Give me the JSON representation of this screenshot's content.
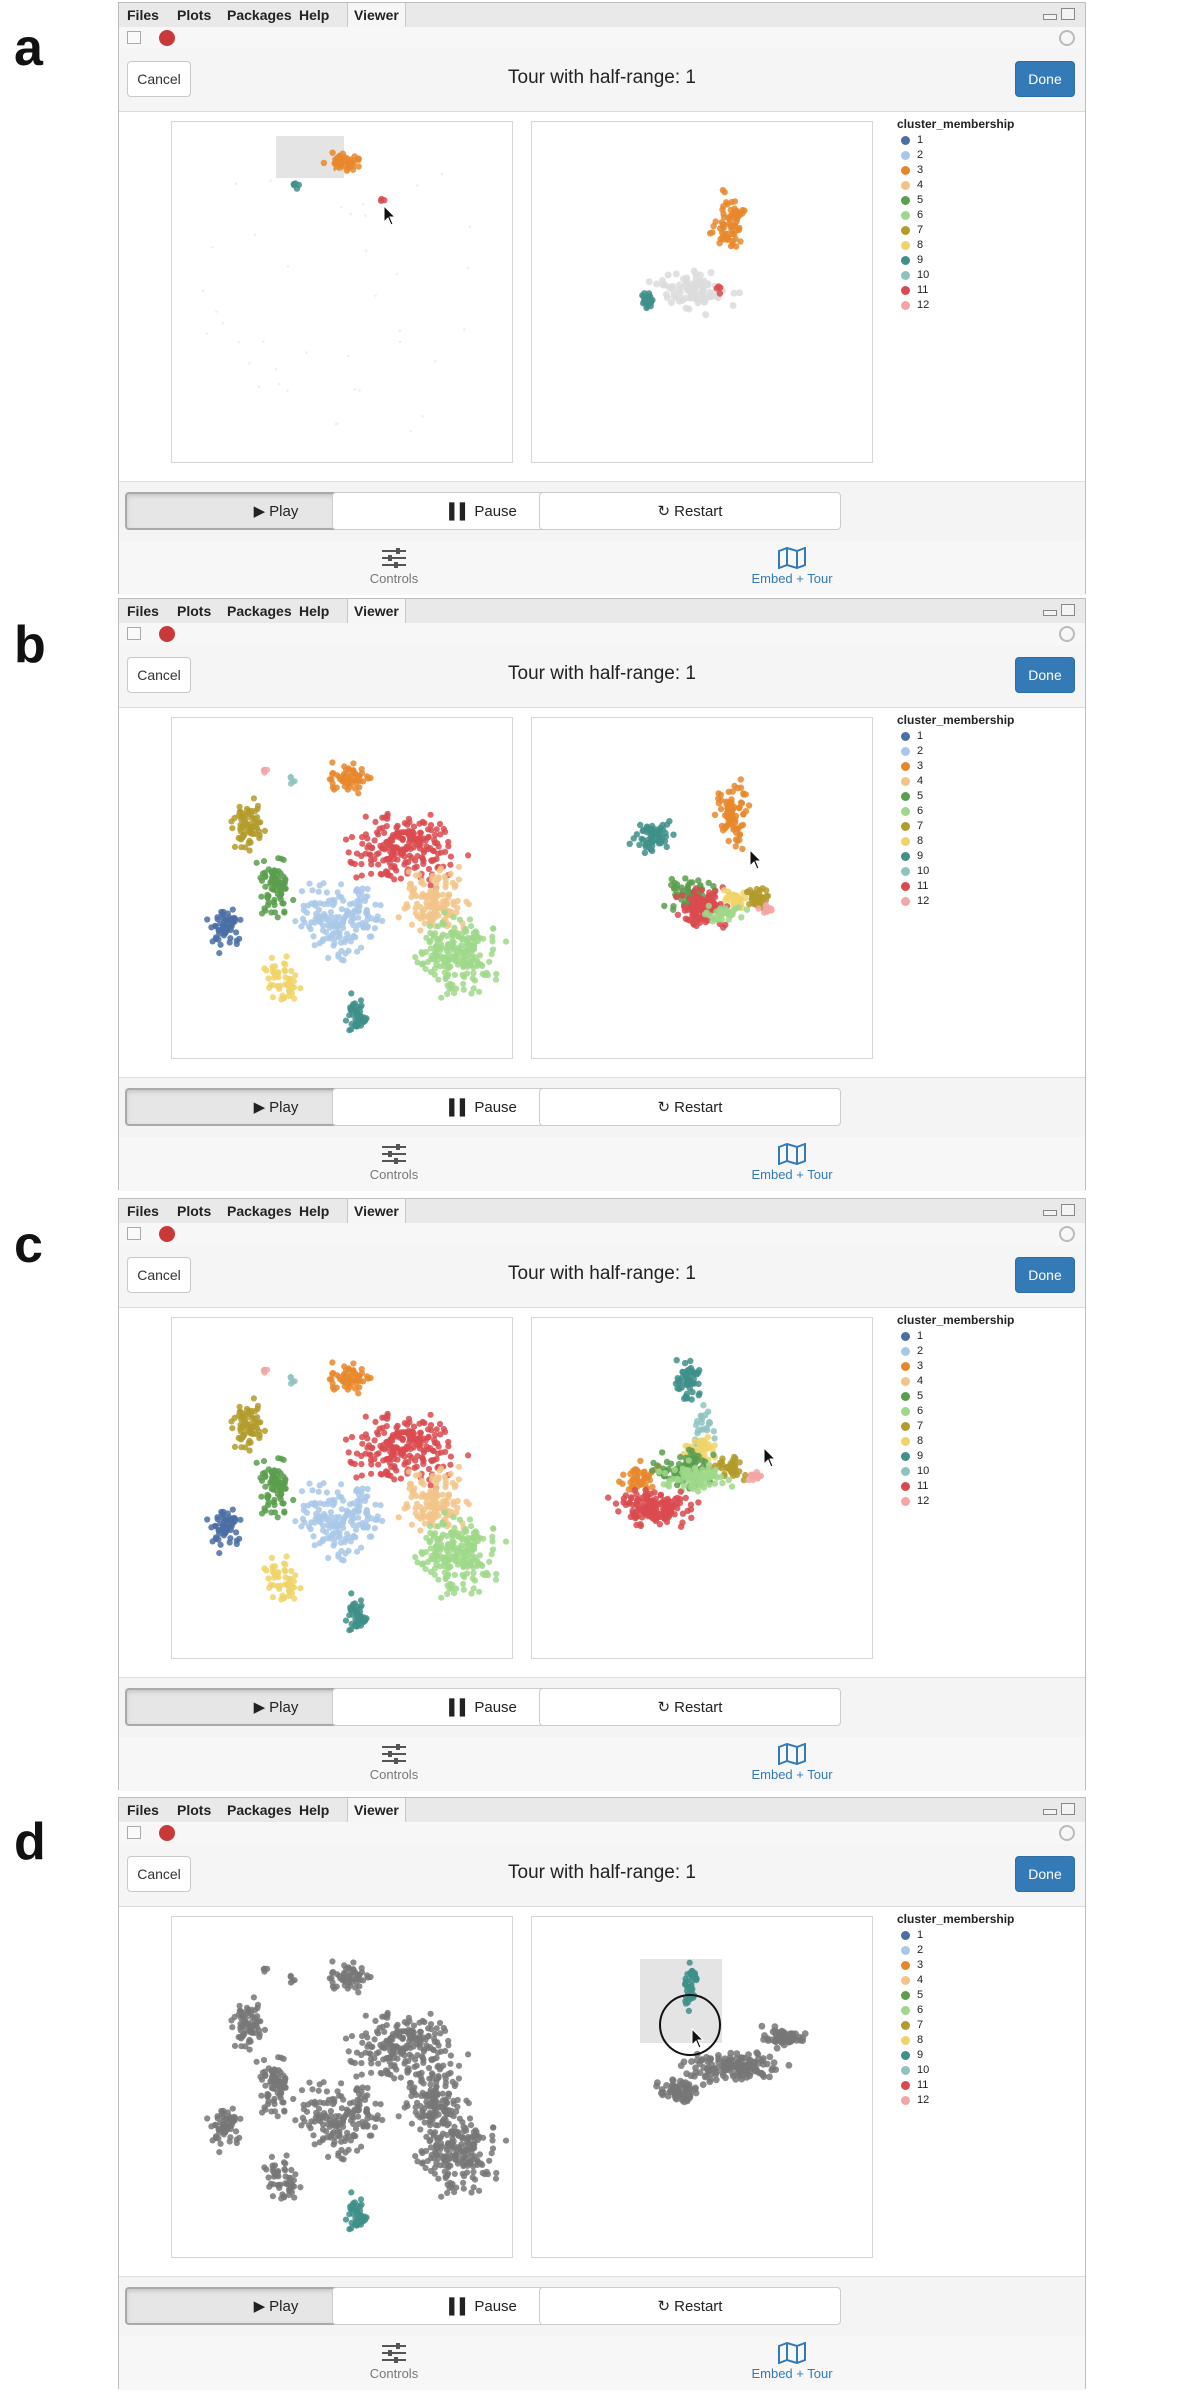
{
  "panels": [
    {
      "letter": "a",
      "state": "selection",
      "cursor": true
    },
    {
      "letter": "b",
      "state": "colored",
      "cursor": true
    },
    {
      "letter": "c",
      "state": "colored-rotated",
      "cursor": true
    },
    {
      "letter": "d",
      "state": "grey-highlight",
      "cursor": true
    }
  ],
  "tabs": [
    "Files",
    "Plots",
    "Packages",
    "Help",
    "Viewer"
  ],
  "active_tab": "Viewer",
  "header": {
    "cancel_label": "Cancel",
    "title": "Tour with half-range: 1",
    "done_label": "Done"
  },
  "legend": {
    "title": "cluster_membership",
    "items": [
      {
        "label": "1",
        "color": "#4a6fa5"
      },
      {
        "label": "2",
        "color": "#a9c8e8"
      },
      {
        "label": "3",
        "color": "#e7872b"
      },
      {
        "label": "4",
        "color": "#f2c48a"
      },
      {
        "label": "5",
        "color": "#5b9e4d"
      },
      {
        "label": "6",
        "color": "#9fd88a"
      },
      {
        "label": "7",
        "color": "#b39b2c"
      },
      {
        "label": "8",
        "color": "#f0d46a"
      },
      {
        "label": "9",
        "color": "#3f8f8a"
      },
      {
        "label": "10",
        "color": "#8fc3c0"
      },
      {
        "label": "11",
        "color": "#d94a4f"
      },
      {
        "label": "12",
        "color": "#f2a6a6"
      }
    ]
  },
  "controls": {
    "play_label": "Play",
    "pause_label": "Pause",
    "restart_label": "Restart"
  },
  "nav": {
    "controls_label": "Controls",
    "embed_label": "Embed + Tour"
  },
  "icons": {
    "play": "play-icon",
    "pause": "pause-icon",
    "restart": "refresh-icon",
    "controls": "sliders-icon",
    "embed": "map-icon",
    "stop": "stop-icon",
    "cursor": "mouse-pointer-icon"
  }
}
